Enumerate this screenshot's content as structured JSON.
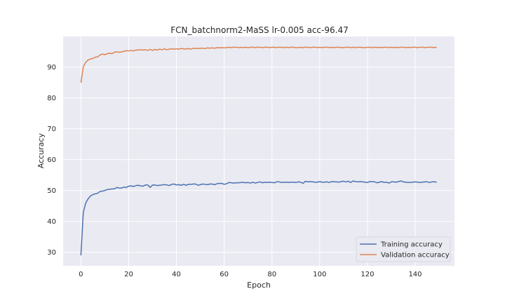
{
  "chart_data": {
    "type": "line",
    "title": "FCN_batchnorm2-MaSS lr-0.005 acc-96.47",
    "xlabel": "Epoch",
    "ylabel": "Accuracy",
    "xlim": [
      -7.45,
      156.45
    ],
    "ylim": [
      25.6,
      99.9
    ],
    "xticks": [
      0,
      20,
      40,
      60,
      80,
      100,
      120,
      140
    ],
    "yticks": [
      30,
      40,
      50,
      60,
      70,
      80,
      90
    ],
    "grid": true,
    "legend_position": "lower-right",
    "series": [
      {
        "name": "Training accuracy",
        "color": "#4c72b0",
        "values": [
          29.0,
          42.9,
          45.9,
          47.3,
          48.2,
          48.7,
          48.9,
          49.1,
          49.7,
          49.8,
          50.0,
          50.3,
          50.4,
          50.5,
          50.5,
          51.0,
          50.8,
          50.8,
          51.1,
          51.0,
          51.4,
          51.5,
          51.3,
          51.6,
          51.7,
          51.5,
          51.4,
          51.8,
          51.8,
          51.0,
          51.8,
          51.8,
          51.6,
          51.7,
          51.8,
          51.9,
          51.8,
          51.6,
          52.0,
          52.1,
          51.8,
          51.9,
          51.7,
          52.0,
          51.7,
          52.0,
          52.0,
          52.1,
          52.1,
          51.7,
          51.9,
          52.1,
          52.0,
          51.9,
          52.1,
          52.1,
          51.9,
          52.2,
          52.3,
          52.3,
          52.0,
          52.2,
          52.6,
          52.5,
          52.4,
          52.5,
          52.5,
          52.6,
          52.6,
          52.5,
          52.6,
          52.4,
          52.7,
          52.4,
          52.6,
          52.8,
          52.5,
          52.7,
          52.6,
          52.7,
          52.6,
          52.5,
          52.8,
          52.8,
          52.6,
          52.7,
          52.7,
          52.6,
          52.7,
          52.7,
          52.6,
          52.8,
          52.7,
          52.3,
          53.0,
          52.8,
          52.9,
          52.8,
          52.7,
          52.7,
          52.9,
          52.7,
          52.7,
          52.8,
          52.6,
          52.9,
          52.8,
          52.8,
          52.7,
          52.9,
          53.0,
          52.8,
          53.0,
          52.6,
          53.1,
          52.9,
          52.8,
          52.9,
          52.8,
          52.7,
          52.6,
          52.9,
          52.9,
          52.8,
          52.5,
          52.7,
          52.9,
          52.6,
          52.7,
          52.4,
          52.8,
          52.8,
          52.7,
          52.9,
          53.1,
          52.8,
          52.7,
          52.6,
          52.6,
          52.7,
          52.8,
          52.7,
          52.6,
          52.7,
          52.8,
          52.8,
          52.6,
          52.8,
          52.8,
          52.7
        ]
      },
      {
        "name": "Validation accuracy",
        "color": "#dd8452",
        "values": [
          84.9,
          90.1,
          91.5,
          92.3,
          92.6,
          92.8,
          93.2,
          93.3,
          93.9,
          94.2,
          94.0,
          94.3,
          94.5,
          94.3,
          94.8,
          94.9,
          94.8,
          94.9,
          95.1,
          95.3,
          95.2,
          95.4,
          95.2,
          95.5,
          95.5,
          95.6,
          95.5,
          95.6,
          95.4,
          95.7,
          95.4,
          95.7,
          95.5,
          95.8,
          95.6,
          95.9,
          95.6,
          95.8,
          95.9,
          95.8,
          95.9,
          95.8,
          96.0,
          95.9,
          95.8,
          96.0,
          95.8,
          96.1,
          96.0,
          96.0,
          96.1,
          96.1,
          96.0,
          96.2,
          96.1,
          96.2,
          96.1,
          96.3,
          96.2,
          96.3,
          96.2,
          96.3,
          96.4,
          96.3,
          96.4,
          96.4,
          96.3,
          96.4,
          96.3,
          96.4,
          96.3,
          96.4,
          96.4,
          96.3,
          96.4,
          96.4,
          96.3,
          96.4,
          96.4,
          96.3,
          96.4,
          96.4,
          96.3,
          96.4,
          96.4,
          96.3,
          96.4,
          96.3,
          96.4,
          96.4,
          96.3,
          96.3,
          96.4,
          96.3,
          96.4,
          96.4,
          96.3,
          96.4,
          96.4,
          96.3,
          96.4,
          96.3,
          96.4,
          96.4,
          96.3,
          96.4,
          96.3,
          96.4,
          96.4,
          96.3,
          96.3,
          96.4,
          96.4,
          96.3,
          96.4,
          96.3,
          96.4,
          96.4,
          96.3,
          96.3,
          96.4,
          96.4,
          96.3,
          96.4,
          96.3,
          96.4,
          96.3,
          96.4,
          96.4,
          96.3,
          96.4,
          96.3,
          96.4,
          96.3,
          96.4,
          96.4,
          96.3,
          96.4,
          96.3,
          96.4,
          96.4,
          96.3,
          96.4,
          96.4,
          96.3,
          96.4,
          96.4,
          96.4,
          96.3,
          96.4
        ]
      }
    ]
  }
}
